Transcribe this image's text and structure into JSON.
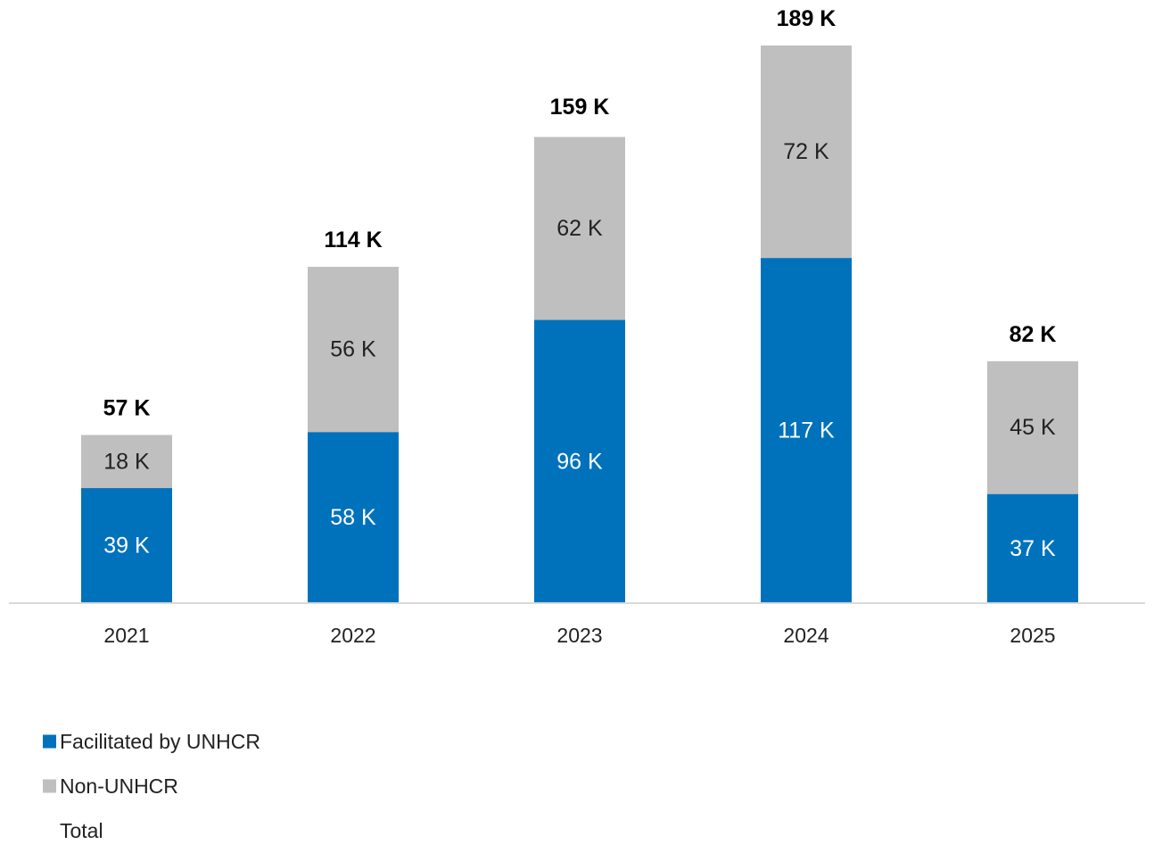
{
  "chart_data": {
    "type": "bar",
    "stacked": true,
    "categories": [
      "2021",
      "2022",
      "2023",
      "2024",
      "2025"
    ],
    "series": [
      {
        "name": "Facilitated by UNHCR",
        "values": [
          39,
          58,
          96,
          117,
          37
        ],
        "labels": [
          "39 K",
          "58 K",
          "96 K",
          "117 K",
          "37 K"
        ],
        "color": "#0072bc"
      },
      {
        "name": "Non-UNHCR",
        "values": [
          18,
          56,
          62,
          72,
          45
        ],
        "labels": [
          "18 K",
          "56 K",
          "62 K",
          "72 K",
          "45 K"
        ],
        "color": "#bfbfbf"
      }
    ],
    "totals": {
      "name": "Total",
      "values": [
        57,
        114,
        159,
        189,
        82
      ],
      "labels": [
        "57 K",
        "114 K",
        "159 K",
        "189 K",
        "82 K"
      ]
    },
    "unit": "K",
    "ylim": [
      0,
      189
    ],
    "grid": false,
    "legend_position": "bottom-left",
    "colors": {
      "axis": "#d9d9d9",
      "total_label": "#000000",
      "category_label": "#222222",
      "segment_label_dark": "#222222",
      "segment_label_light": "#ffffff"
    }
  }
}
